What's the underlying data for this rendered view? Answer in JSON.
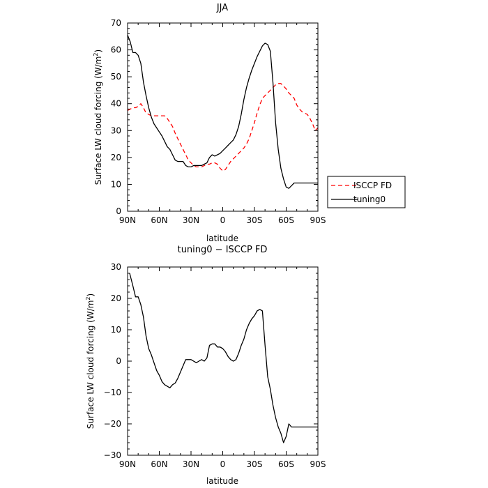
{
  "chart_data": [
    {
      "type": "line",
      "title": "JJA",
      "xlabel": "latitude",
      "ylabel": "Surface LW cloud forcing (W/m²)",
      "ylabel_parts": [
        "Surface LW cloud forcing (W/m",
        "2",
        ")"
      ],
      "xlim": [
        90,
        -90
      ],
      "ylim": [
        0,
        70
      ],
      "x_ticks": [
        90,
        60,
        30,
        0,
        -30,
        -60,
        -90
      ],
      "x_tick_labels": [
        "90N",
        "60N",
        "30N",
        "0",
        "30S",
        "60S",
        "90S"
      ],
      "y_ticks": [
        0,
        10,
        20,
        30,
        40,
        50,
        60,
        70
      ],
      "y_tick_labels": [
        "0",
        "10",
        "20",
        "30",
        "40",
        "50",
        "60",
        "70"
      ],
      "legend": {
        "placement": "right"
      },
      "series": [
        {
          "name": "ISCCP FD",
          "color": "#ff0000",
          "dash": "dashed",
          "x": [
            90,
            85,
            82.5,
            80,
            77.5,
            75,
            72.5,
            70,
            67.5,
            65,
            62.5,
            60,
            57.5,
            55,
            52.5,
            50,
            47.5,
            45,
            42.5,
            40,
            37.5,
            35,
            32.5,
            30,
            27.5,
            25,
            22.5,
            20,
            17.5,
            15,
            12.5,
            10,
            7.5,
            5,
            2.5,
            0,
            -2.5,
            -5,
            -7.5,
            -10,
            -12.5,
            -15,
            -17.5,
            -20,
            -22.5,
            -25,
            -27.5,
            -30,
            -32.5,
            -35,
            -37.5,
            -40,
            -42.5,
            -45,
            -47.5,
            -50,
            -52.5,
            -55,
            -57.5,
            -60,
            -62.5,
            -65,
            -67.5,
            -70,
            -72.5,
            -75,
            -77.5,
            -80,
            -82.5,
            -85,
            -87.5,
            -90
          ],
          "values": [
            37.5,
            38.5,
            38.5,
            39,
            40,
            38.5,
            36.5,
            36,
            35.5,
            35.5,
            35.5,
            35.5,
            35.5,
            35.5,
            34.5,
            33,
            31.5,
            29,
            27,
            25,
            23,
            21,
            19,
            18,
            17,
            16.5,
            16.5,
            16.5,
            17,
            17.5,
            17.5,
            18,
            18,
            17.5,
            16,
            15,
            15.5,
            17,
            18.5,
            19.5,
            20.5,
            21.5,
            22.5,
            23.5,
            25,
            27,
            30,
            33,
            36.5,
            39.5,
            42,
            43,
            44,
            45,
            46,
            47,
            47.5,
            47.5,
            46.5,
            45.5,
            44,
            43,
            42,
            39.5,
            38,
            37,
            36.5,
            36,
            34.5,
            32.5,
            30,
            31
          ]
        },
        {
          "name": "tuning0",
          "color": "#000000",
          "dash": "solid",
          "x": [
            90,
            87.5,
            85,
            82.5,
            80,
            77.5,
            75,
            72.5,
            70,
            67.5,
            65,
            62.5,
            60,
            57.5,
            55,
            52.5,
            50,
            47.5,
            45,
            42.5,
            40,
            37.5,
            35,
            32.5,
            30,
            27.5,
            25,
            22.5,
            20,
            17.5,
            15,
            12.5,
            10,
            7.5,
            5,
            2.5,
            0,
            -2.5,
            -5,
            -7.5,
            -10,
            -12.5,
            -15,
            -17.5,
            -20,
            -22.5,
            -25,
            -27.5,
            -30,
            -32.5,
            -35,
            -37.5,
            -40,
            -42.5,
            -45,
            -47.5,
            -50,
            -52.5,
            -55,
            -57.5,
            -60,
            -62.5,
            -65,
            -67.5,
            -70,
            -72.5,
            -75,
            -77.5,
            -80,
            -82.5,
            -85,
            -87.5,
            -90
          ],
          "values": [
            65.5,
            63,
            59,
            59,
            58,
            55,
            48,
            43,
            38.5,
            35,
            32.5,
            31,
            29.5,
            28,
            26,
            24,
            23,
            21,
            19,
            18.5,
            18.5,
            18.5,
            17,
            16.5,
            16.5,
            17,
            17,
            17,
            17,
            17.5,
            18,
            20,
            21,
            20.5,
            21,
            21.5,
            22.5,
            23.5,
            24.5,
            25.5,
            26.5,
            28.5,
            31.5,
            36,
            41.5,
            46,
            49.5,
            52.5,
            55,
            57.5,
            59.5,
            61.5,
            62.5,
            62,
            59.5,
            48,
            33,
            23,
            16,
            12,
            9,
            8.5,
            9.5,
            10.5,
            10.5,
            10.5,
            10.5,
            10.5,
            10.5,
            10.5,
            10.5,
            10.5,
            10.5
          ]
        }
      ]
    },
    {
      "type": "line",
      "title": "tuning0 − ISCCP FD",
      "xlabel": "latitude",
      "ylabel": "Surface LW cloud forcing (W/m²)",
      "ylabel_parts": [
        "Surface LW cloud forcing (W/m",
        "2",
        ")"
      ],
      "xlim": [
        90,
        -90
      ],
      "ylim": [
        -30,
        30
      ],
      "x_ticks": [
        90,
        60,
        30,
        0,
        -30,
        -60,
        -90
      ],
      "x_tick_labels": [
        "90N",
        "60N",
        "30N",
        "0",
        "30S",
        "60S",
        "90S"
      ],
      "y_ticks": [
        -30,
        -20,
        -10,
        0,
        10,
        20,
        30
      ],
      "y_tick_labels": [
        "−30",
        "−20",
        "−10",
        "0",
        "10",
        "20",
        "30"
      ],
      "series": [
        {
          "color": "#000000",
          "dash": "solid",
          "x": [
            88,
            85,
            82.5,
            80,
            77.5,
            75,
            72.5,
            70,
            67.5,
            65,
            62.5,
            60,
            57.5,
            55,
            52.5,
            50,
            47.5,
            45,
            42.5,
            40,
            37.5,
            35,
            32.5,
            30,
            27.5,
            25,
            22.5,
            20,
            17.5,
            15,
            12.5,
            10,
            7.5,
            5,
            2.5,
            0,
            -2.5,
            -5,
            -7.5,
            -10,
            -12.5,
            -15,
            -17.5,
            -20,
            -22.5,
            -25,
            -27.5,
            -30,
            -32.5,
            -35,
            -37.5,
            -40,
            -42.5,
            -45,
            -47.5,
            -50,
            -52.5,
            -55,
            -57.5,
            -60,
            -62.5,
            -65,
            -67.5,
            -70,
            -72.5,
            -75,
            -77.5,
            -80,
            -82.5,
            -85,
            -87.5,
            -90
          ],
          "values": [
            28,
            24,
            20.5,
            20.5,
            18,
            14,
            8,
            4,
            2,
            -0.5,
            -3,
            -4.5,
            -6.5,
            -7.5,
            -8,
            -8.5,
            -7.5,
            -7,
            -5.5,
            -3.5,
            -1.5,
            0.5,
            0.5,
            0.5,
            0,
            -0.5,
            0,
            0.5,
            0,
            1,
            5,
            5.5,
            5.5,
            4.5,
            4.5,
            4,
            3,
            1.5,
            0.5,
            0,
            0.5,
            2.5,
            5,
            7,
            10,
            12,
            13.5,
            14.5,
            16,
            16.5,
            16,
            5,
            -5,
            -9,
            -14,
            -18,
            -21,
            -23,
            -26,
            -24,
            -20,
            -21,
            -21,
            -21,
            -21,
            -21,
            -21,
            -21,
            -21,
            -21,
            -21,
            -21
          ]
        }
      ]
    }
  ]
}
